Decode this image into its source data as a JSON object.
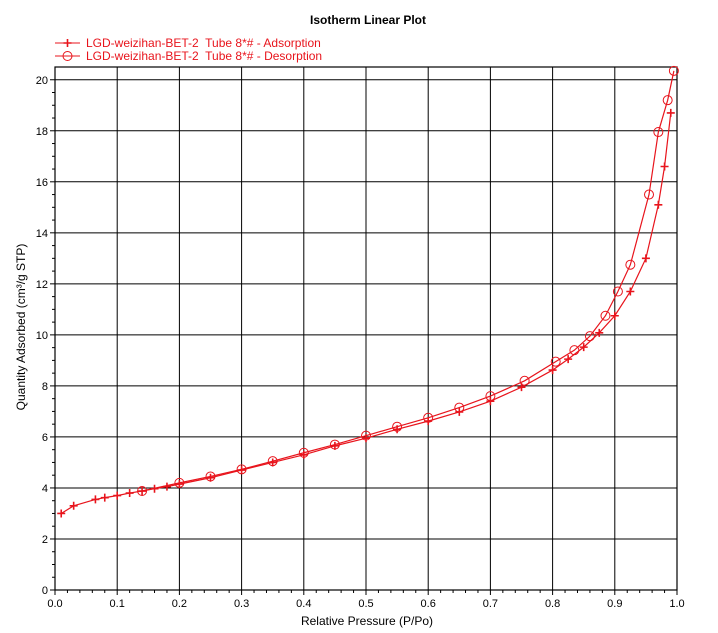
{
  "chart_data": {
    "type": "line",
    "title": "Isotherm Linear Plot",
    "xlabel": "Relative Pressure (P/Po)",
    "ylabel": "Quantity Adsorbed (cm³/g STP)",
    "xlim": [
      0.0,
      1.0
    ],
    "ylim": [
      0,
      20.5
    ],
    "x_ticks": [
      0.0,
      0.1,
      0.2,
      0.3,
      0.4,
      0.5,
      0.6,
      0.7,
      0.8,
      0.9,
      1.0
    ],
    "x_tick_labels": [
      "0.0",
      "0.1",
      "0.2",
      "0.3",
      "0.4",
      "0.5",
      "0.6",
      "0.7",
      "0.8",
      "0.9",
      "1.0"
    ],
    "y_ticks": [
      0,
      2,
      4,
      6,
      8,
      10,
      12,
      14,
      16,
      18,
      20
    ],
    "y_tick_labels": [
      "0",
      "2",
      "4",
      "6",
      "8",
      "10",
      "12",
      "14",
      "16",
      "18",
      "20"
    ],
    "grid": true,
    "legend_position": "top-left",
    "series": [
      {
        "name": "LGD-weizihan-BET-2  Tube 8*# - Adsorption",
        "marker": "plus",
        "color": "#e8141c",
        "x": [
          0.01,
          0.03,
          0.065,
          0.08,
          0.1,
          0.12,
          0.14,
          0.16,
          0.18,
          0.2,
          0.25,
          0.3,
          0.35,
          0.4,
          0.45,
          0.5,
          0.55,
          0.6,
          0.65,
          0.7,
          0.75,
          0.8,
          0.825,
          0.85,
          0.875,
          0.9,
          0.925,
          0.95,
          0.97,
          0.98,
          0.99
        ],
        "y": [
          3.0,
          3.3,
          3.55,
          3.62,
          3.7,
          3.8,
          3.88,
          3.97,
          4.05,
          4.15,
          4.4,
          4.7,
          5.0,
          5.3,
          5.65,
          5.95,
          6.3,
          6.62,
          6.98,
          7.4,
          7.95,
          8.62,
          9.05,
          9.52,
          10.08,
          10.75,
          11.7,
          13.0,
          15.1,
          16.6,
          18.7
        ]
      },
      {
        "name": "LGD-weizihan-BET-2  Tube 8*# - Desorption",
        "marker": "circle",
        "color": "#e8141c",
        "x": [
          0.995,
          0.985,
          0.97,
          0.955,
          0.925,
          0.905,
          0.885,
          0.86,
          0.835,
          0.805,
          0.755,
          0.7,
          0.65,
          0.6,
          0.55,
          0.5,
          0.45,
          0.4,
          0.35,
          0.3,
          0.25,
          0.2,
          0.14
        ],
        "y": [
          20.35,
          19.2,
          17.95,
          15.5,
          12.75,
          11.7,
          10.75,
          9.95,
          9.4,
          8.95,
          8.2,
          7.6,
          7.15,
          6.75,
          6.4,
          6.05,
          5.7,
          5.38,
          5.05,
          4.73,
          4.45,
          4.2,
          3.88
        ]
      }
    ]
  }
}
